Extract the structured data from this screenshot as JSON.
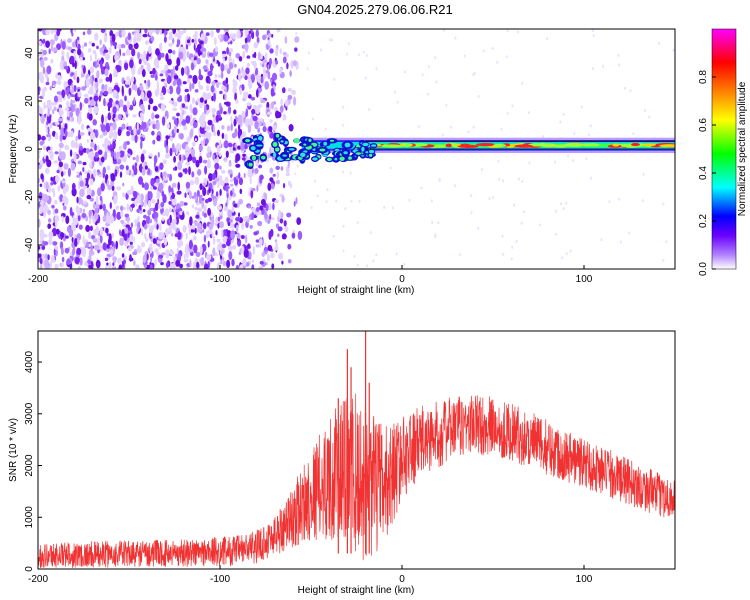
{
  "title": "GN04.2025.279.06.06.R21",
  "chart_data": [
    {
      "type": "heatmap",
      "name": "spectrogram",
      "xlabel": "Height of straight line (km)",
      "ylabel": "Frequency (Hz)",
      "xlim": [
        -200,
        150
      ],
      "ylim": [
        -50,
        50
      ],
      "xticks": [
        -200,
        -100,
        0,
        100
      ],
      "xtick_labels": [
        "-200",
        "-100",
        "0",
        "100"
      ],
      "yticks": [
        -40,
        -20,
        0,
        20,
        40
      ],
      "ytick_labels": [
        "-40",
        "-20",
        "0",
        "20",
        "40"
      ],
      "colorbar": {
        "label": "Normalized spectral amplitude",
        "range": [
          0,
          1
        ],
        "ticks": [
          0,
          0.2,
          0.4,
          0.6,
          0.8
        ],
        "tick_labels": [
          "0.0",
          "0.2",
          "0.4",
          "0.6",
          "0.8"
        ],
        "colors": [
          "#ffffff",
          "#8000ff",
          "#0000ff",
          "#00ffff",
          "#00ff00",
          "#ffff00",
          "#ff8000",
          "#ff0000",
          "#ff00ff"
        ]
      },
      "features": {
        "noise_region_x": [
          -200,
          -65
        ],
        "noise_fade_x": [
          -80,
          -60
        ],
        "signal_start_x": -85,
        "signal_frequency_hz": 1.5,
        "signal_band_width_hz": 3,
        "signal_hot_x": [
          -20,
          150
        ],
        "scintillation_region_x": [
          -85,
          -30
        ]
      },
      "line_color": "#000000",
      "box": true
    },
    {
      "type": "line",
      "name": "snr",
      "xlabel": "Height of straight line (km)",
      "ylabel": "SNR (10 * v/v)",
      "xlim": [
        -200,
        150
      ],
      "ylim": [
        0,
        4600
      ],
      "xticks": [
        -200,
        -100,
        0,
        100
      ],
      "xtick_labels": [
        "-200",
        "-100",
        "0",
        "100"
      ],
      "yticks": [
        0,
        1000,
        2000,
        3000,
        4000
      ],
      "ytick_labels": [
        "0",
        "1000",
        "2000",
        "3000",
        "4000"
      ],
      "color": "#f03232",
      "envelope": {
        "x": [
          -200,
          -170,
          -140,
          -110,
          -90,
          -80,
          -70,
          -60,
          -50,
          -40,
          -30,
          -25,
          -20,
          -10,
          0,
          10,
          20,
          30,
          40,
          50,
          60,
          70,
          80,
          90,
          100,
          110,
          120,
          130,
          140,
          150
        ],
        "mean": [
          260,
          280,
          300,
          320,
          360,
          430,
          650,
          1000,
          1450,
          1750,
          1900,
          1800,
          1650,
          1600,
          2150,
          2450,
          2600,
          2750,
          2800,
          2750,
          2650,
          2500,
          2350,
          2200,
          2050,
          1900,
          1750,
          1600,
          1450,
          1350
        ],
        "spread": [
          240,
          260,
          260,
          280,
          300,
          320,
          400,
          600,
          900,
          1200,
          1500,
          1600,
          1500,
          1200,
          800,
          700,
          650,
          600,
          600,
          580,
          560,
          550,
          540,
          520,
          500,
          480,
          460,
          440,
          420,
          400
        ]
      },
      "spikes": [
        {
          "x": -30,
          "y": 4250
        },
        {
          "x": -28,
          "y": 3900
        },
        {
          "x": -20,
          "y": 4600
        },
        {
          "x": -18,
          "y": 3600
        },
        {
          "x": -35,
          "y": 3300
        }
      ]
    }
  ]
}
